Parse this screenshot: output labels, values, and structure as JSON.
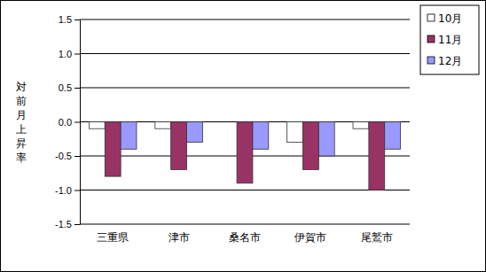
{
  "chart_data": {
    "type": "bar",
    "y_label": "対前月上昇率",
    "categories": [
      "三重県",
      "津市",
      "桑名市",
      "伊賀市",
      "尾鷲市"
    ],
    "series": [
      {
        "name": "10月",
        "color": "#ffffff",
        "values": [
          -0.1,
          -0.1,
          0.0,
          -0.3,
          -0.1
        ]
      },
      {
        "name": "11月",
        "color": "#993366",
        "values": [
          -0.8,
          -0.7,
          -0.9,
          -0.7,
          -1.0
        ]
      },
      {
        "name": "12月",
        "color": "#9999ff",
        "values": [
          -0.4,
          -0.3,
          -0.4,
          -0.5,
          -0.4
        ]
      }
    ],
    "ylim": [
      -1.5,
      1.5
    ],
    "yticks": [
      -1.5,
      {
        "value": -1.0,
        "label": "-1.0"
      },
      -0.5,
      {
        "value": 0.0,
        "label": "0.0"
      },
      0.5,
      {
        "value": 1.0,
        "label": "1.0"
      },
      1.5
    ],
    "grid": true,
    "legend": "right"
  }
}
